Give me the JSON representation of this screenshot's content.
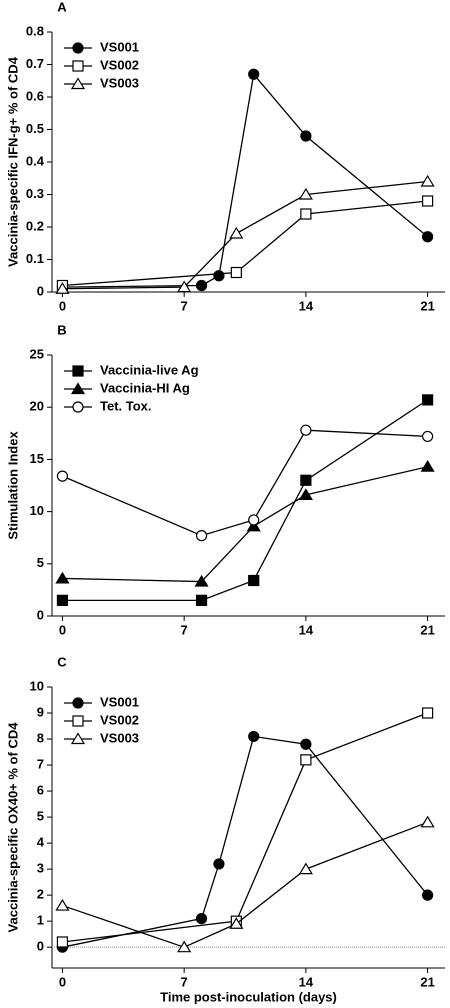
{
  "chart_data": [
    {
      "type": "line",
      "title": "A",
      "ylabel": "Vaccinia-specific IFN-g+ % of CD4",
      "xlim": [
        -0.6,
        22
      ],
      "ylim": [
        0,
        0.8
      ],
      "xticks": [
        0,
        7,
        14,
        21
      ],
      "yticks": [
        0,
        0.1,
        0.2,
        0.3,
        0.4,
        0.5,
        0.6,
        0.7,
        0.8
      ],
      "legend": "upper left",
      "series": [
        {
          "name": "VS001",
          "color": "#000000",
          "marker": "circle",
          "filled": true,
          "x": [
            0,
            8,
            9,
            11,
            14,
            21
          ],
          "values": [
            0.015,
            0.02,
            0.05,
            0.67,
            0.48,
            0.17
          ]
        },
        {
          "name": "VS002",
          "color": "#000000",
          "marker": "square",
          "filled": false,
          "x": [
            0,
            10,
            14,
            21
          ],
          "values": [
            0.02,
            0.06,
            0.24,
            0.28
          ]
        },
        {
          "name": "VS003",
          "color": "#000000",
          "marker": "triangle",
          "filled": false,
          "x": [
            0,
            7,
            10,
            14,
            21
          ],
          "values": [
            0.01,
            0.015,
            0.18,
            0.3,
            0.34
          ]
        }
      ]
    },
    {
      "type": "line",
      "title": "B",
      "ylabel": "Stimulation Index",
      "xlim": [
        -0.6,
        22
      ],
      "ylim": [
        0,
        25
      ],
      "xticks": [
        0,
        7,
        14,
        21
      ],
      "yticks": [
        0,
        5,
        10,
        15,
        20,
        25
      ],
      "legend": "upper left",
      "series": [
        {
          "name": "Vaccinia-live Ag",
          "color": "#000000",
          "marker": "square",
          "filled": true,
          "x": [
            0,
            8,
            11,
            14,
            21
          ],
          "values": [
            1.5,
            1.5,
            3.4,
            13,
            20.7
          ]
        },
        {
          "name": "Vaccinia-HI Ag",
          "color": "#000000",
          "marker": "triangle",
          "filled": true,
          "x": [
            0,
            8,
            11,
            14,
            21
          ],
          "values": [
            3.6,
            3.3,
            8.6,
            11.6,
            14.3
          ]
        },
        {
          "name": "Tet. Tox.",
          "color": "#000000",
          "marker": "circle",
          "filled": false,
          "x": [
            0,
            8,
            11,
            14,
            21
          ],
          "values": [
            13.4,
            7.7,
            9.2,
            17.8,
            17.2
          ]
        }
      ]
    },
    {
      "type": "line",
      "title": "C",
      "ylabel": "Vaccinia-specific OX40+ % of CD4",
      "xlabel": "Time post-inoculation (days)",
      "xlim": [
        -0.6,
        22
      ],
      "ylim": [
        -0.8,
        10
      ],
      "xticks": [
        0,
        7,
        14,
        21
      ],
      "yticks": [
        0,
        1,
        2,
        3,
        4,
        5,
        6,
        7,
        8,
        9,
        10
      ],
      "legend": "upper left",
      "zero_line": true,
      "series": [
        {
          "name": "VS001",
          "color": "#000000",
          "marker": "circle",
          "filled": true,
          "x": [
            0,
            8,
            9,
            11,
            14,
            21
          ],
          "values": [
            0,
            1.1,
            3.2,
            8.1,
            7.8,
            2
          ]
        },
        {
          "name": "VS002",
          "color": "#000000",
          "marker": "square",
          "filled": false,
          "x": [
            0,
            10,
            14,
            21
          ],
          "values": [
            0.2,
            1,
            7.2,
            9
          ]
        },
        {
          "name": "VS003",
          "color": "#000000",
          "marker": "triangle",
          "filled": false,
          "x": [
            0,
            7,
            10,
            14,
            21
          ],
          "values": [
            1.6,
            0,
            0.9,
            3,
            4.8
          ]
        }
      ]
    }
  ]
}
